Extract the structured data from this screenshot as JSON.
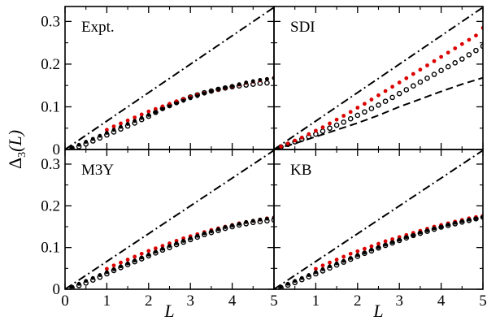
{
  "chart_data": {
    "type": "scatter",
    "layout": "2x2 panels, shared x and y axes",
    "xlabel": "L",
    "ylabel": "Δ3(L)",
    "ylabel_main": "Δ",
    "ylabel_sub": "3",
    "ylabel_tail": "(L)",
    "xlim": [
      0,
      5
    ],
    "ylim": [
      0,
      0.335
    ],
    "xticks": [
      0,
      1,
      2,
      3,
      4,
      5
    ],
    "x_tick_labels": [
      "0",
      "1",
      "2",
      "3",
      "4",
      "5"
    ],
    "yticks": [
      0,
      0.1,
      0.2,
      0.3
    ],
    "y_tick_labels": [
      "0",
      "0.1",
      "0.2",
      "0.3"
    ],
    "grid": false,
    "legend": "none",
    "colors": {
      "open_circles": "#000000",
      "red_dots": "#dd0000",
      "black_dots": "#000000",
      "dash_dot_line": "#000000",
      "dashed_line": "#000000"
    },
    "panels": [
      {
        "label": "Expt.",
        "position": "top-left",
        "series": [
          {
            "marker": "open-circle",
            "x": [
              0.167,
              0.333,
              0.5,
              0.667,
              0.833,
              1.0,
              1.167,
              1.333,
              1.5,
              1.667,
              1.833,
              2.0,
              2.167,
              2.333,
              2.5,
              2.667,
              2.833,
              3.0,
              3.167,
              3.333,
              3.5,
              3.667,
              3.833,
              4.0,
              4.167,
              4.333,
              4.5,
              4.667,
              4.833
            ],
            "y": [
              0.003,
              0.007,
              0.013,
              0.02,
              0.027,
              0.034,
              0.041,
              0.048,
              0.055,
              0.062,
              0.07,
              0.078,
              0.087,
              0.096,
              0.103,
              0.11,
              0.117,
              0.123,
              0.128,
              0.133,
              0.137,
              0.141,
              0.144,
              0.147,
              0.149,
              0.151,
              0.153,
              0.155,
              0.156
            ]
          },
          {
            "marker": "red-dot",
            "x": [
              1.0,
              1.167,
              1.333,
              1.5,
              1.667,
              1.833,
              2.0,
              2.167,
              2.333,
              2.5,
              2.667,
              2.833,
              3.0,
              3.167,
              3.333,
              3.5,
              3.667,
              3.833,
              4.0,
              4.167,
              4.333,
              4.5,
              4.667,
              4.833,
              5.0
            ],
            "y": [
              0.046,
              0.054,
              0.061,
              0.068,
              0.075,
              0.082,
              0.089,
              0.095,
              0.101,
              0.107,
              0.113,
              0.118,
              0.123,
              0.128,
              0.132,
              0.136,
              0.14,
              0.144,
              0.148,
              0.152,
              0.156,
              0.159,
              0.162,
              0.165,
              0.168
            ]
          },
          {
            "marker": "black-dot",
            "x": [
              0.0,
              0.167,
              0.333,
              0.5,
              0.667,
              0.833,
              1.0,
              1.167,
              1.333,
              1.5,
              1.667,
              1.833,
              2.0,
              2.167,
              2.333,
              2.5,
              2.667,
              2.833,
              3.0,
              3.167,
              3.333,
              3.5,
              3.667,
              3.833,
              4.0,
              4.167,
              4.333,
              4.5,
              4.667,
              4.833,
              5.0
            ],
            "y": [
              0.0,
              0.005,
              0.011,
              0.018,
              0.025,
              0.032,
              0.039,
              0.046,
              0.053,
              0.06,
              0.067,
              0.074,
              0.081,
              0.088,
              0.095,
              0.101,
              0.108,
              0.114,
              0.12,
              0.125,
              0.131,
              0.136,
              0.141,
              0.145,
              0.149,
              0.153,
              0.157,
              0.16,
              0.163,
              0.165,
              0.167
            ]
          },
          {
            "marker": "dash-dot-line",
            "x": [
              0,
              5
            ],
            "y": [
              0,
              0.333
            ]
          }
        ]
      },
      {
        "label": "SDI",
        "position": "top-right",
        "series": [
          {
            "marker": "open-circle",
            "x": [
              0.167,
              0.333,
              0.5,
              0.667,
              0.833,
              1.0,
              1.167,
              1.333,
              1.5,
              1.667,
              1.833,
              2.0,
              2.167,
              2.333,
              2.5,
              2.667,
              2.833,
              3.0,
              3.167,
              3.333,
              3.5,
              3.667,
              3.833,
              4.0,
              4.167,
              4.333,
              4.5,
              4.667,
              4.833,
              5.0
            ],
            "y": [
              0.006,
              0.012,
              0.018,
              0.024,
              0.03,
              0.036,
              0.043,
              0.05,
              0.057,
              0.064,
              0.072,
              0.08,
              0.088,
              0.096,
              0.104,
              0.113,
              0.122,
              0.131,
              0.14,
              0.149,
              0.158,
              0.167,
              0.176,
              0.185,
              0.194,
              0.203,
              0.212,
              0.222,
              0.232,
              0.242
            ]
          },
          {
            "marker": "red-dot",
            "x": [
              0.167,
              0.333,
              0.5,
              0.667,
              0.833,
              1.0,
              1.167,
              1.333,
              1.5,
              1.667,
              1.833,
              2.0,
              2.167,
              2.333,
              2.5,
              2.667,
              2.833,
              3.0,
              3.167,
              3.333,
              3.5,
              3.667,
              3.833,
              4.0,
              4.167,
              4.333,
              4.5,
              4.667,
              4.833,
              5.0
            ],
            "y": [
              0.007,
              0.014,
              0.021,
              0.028,
              0.036,
              0.044,
              0.052,
              0.061,
              0.07,
              0.079,
              0.088,
              0.098,
              0.107,
              0.117,
              0.127,
              0.137,
              0.147,
              0.157,
              0.167,
              0.177,
              0.187,
              0.197,
              0.207,
              0.217,
              0.227,
              0.237,
              0.247,
              0.257,
              0.267,
              0.285
            ]
          },
          {
            "marker": "dash-dot-line",
            "x": [
              0,
              5
            ],
            "y": [
              0,
              0.333
            ]
          },
          {
            "marker": "dashed-line",
            "x": [
              0,
              0.5,
              1.0,
              1.5,
              2.0,
              2.5,
              3.0,
              3.5,
              4.0,
              4.5,
              5.0
            ],
            "y": [
              0.0,
              0.014,
              0.03,
              0.046,
              0.062,
              0.08,
              0.1,
              0.118,
              0.136,
              0.153,
              0.168
            ]
          }
        ]
      },
      {
        "label": "M3Y",
        "position": "bottom-left",
        "series": [
          {
            "marker": "open-circle",
            "x": [
              0.167,
              0.333,
              0.5,
              0.667,
              0.833,
              1.0,
              1.167,
              1.333,
              1.5,
              1.667,
              1.833,
              2.0,
              2.167,
              2.333,
              2.5,
              2.667,
              2.833,
              3.0,
              3.167,
              3.333,
              3.5,
              3.667,
              3.833,
              4.0,
              4.167,
              4.333,
              4.5,
              4.667,
              4.833,
              5.0
            ],
            "y": [
              0.004,
              0.009,
              0.015,
              0.022,
              0.029,
              0.037,
              0.045,
              0.052,
              0.059,
              0.066,
              0.073,
              0.08,
              0.087,
              0.094,
              0.1,
              0.107,
              0.113,
              0.119,
              0.125,
              0.131,
              0.136,
              0.141,
              0.146,
              0.15,
              0.154,
              0.157,
              0.16,
              0.162,
              0.164,
              0.166
            ]
          },
          {
            "marker": "red-dot",
            "x": [
              1.0,
              1.167,
              1.333,
              1.5,
              1.667,
              1.833,
              2.0,
              2.167,
              2.333,
              2.5,
              2.667,
              2.833,
              3.0,
              3.167,
              3.333,
              3.5,
              3.667,
              3.833,
              4.0,
              4.167,
              4.333,
              4.5,
              4.667,
              4.833,
              5.0
            ],
            "y": [
              0.049,
              0.057,
              0.064,
              0.071,
              0.078,
              0.085,
              0.092,
              0.098,
              0.104,
              0.11,
              0.116,
              0.122,
              0.127,
              0.132,
              0.137,
              0.142,
              0.146,
              0.15,
              0.154,
              0.158,
              0.161,
              0.164,
              0.167,
              0.17,
              0.172
            ]
          },
          {
            "marker": "black-dot",
            "x": [
              0.0,
              0.167,
              0.333,
              0.5,
              0.667,
              0.833,
              1.0,
              1.167,
              1.333,
              1.5,
              1.667,
              1.833,
              2.0,
              2.167,
              2.333,
              2.5,
              2.667,
              2.833,
              3.0,
              3.167,
              3.333,
              3.5,
              3.667,
              3.833,
              4.0,
              4.167,
              4.333,
              4.5,
              4.667,
              4.833,
              5.0
            ],
            "y": [
              0.0,
              0.006,
              0.013,
              0.02,
              0.027,
              0.034,
              0.041,
              0.048,
              0.055,
              0.062,
              0.069,
              0.076,
              0.083,
              0.09,
              0.097,
              0.104,
              0.11,
              0.116,
              0.122,
              0.128,
              0.134,
              0.139,
              0.144,
              0.149,
              0.153,
              0.157,
              0.161,
              0.164,
              0.167,
              0.169,
              0.171
            ]
          },
          {
            "marker": "dash-dot-line",
            "x": [
              0,
              5
            ],
            "y": [
              0,
              0.333
            ]
          }
        ]
      },
      {
        "label": "KB",
        "position": "bottom-right",
        "series": [
          {
            "marker": "open-circle",
            "x": [
              0.167,
              0.333,
              0.5,
              0.667,
              0.833,
              1.0,
              1.167,
              1.333,
              1.5,
              1.667,
              1.833,
              2.0,
              2.167,
              2.333,
              2.5,
              2.667,
              2.833,
              3.0,
              3.167,
              3.333,
              3.5,
              3.667,
              3.833,
              4.0,
              4.167,
              4.333,
              4.5,
              4.667,
              4.833,
              5.0
            ],
            "y": [
              0.004,
              0.01,
              0.016,
              0.023,
              0.03,
              0.037,
              0.044,
              0.051,
              0.058,
              0.065,
              0.072,
              0.079,
              0.086,
              0.092,
              0.099,
              0.105,
              0.111,
              0.117,
              0.123,
              0.129,
              0.134,
              0.139,
              0.144,
              0.149,
              0.153,
              0.157,
              0.161,
              0.165,
              0.169,
              0.173
            ]
          },
          {
            "marker": "red-dot",
            "x": [
              1.0,
              1.167,
              1.333,
              1.5,
              1.667,
              1.833,
              2.0,
              2.167,
              2.333,
              2.5,
              2.667,
              2.833,
              3.0,
              3.167,
              3.333,
              3.5,
              3.667,
              3.833,
              4.0,
              4.167,
              4.333,
              4.5,
              4.667,
              4.833,
              5.0
            ],
            "y": [
              0.049,
              0.057,
              0.064,
              0.071,
              0.078,
              0.085,
              0.091,
              0.097,
              0.103,
              0.109,
              0.115,
              0.12,
              0.125,
              0.13,
              0.135,
              0.14,
              0.145,
              0.15,
              0.154,
              0.158,
              0.162,
              0.166,
              0.17,
              0.173,
              0.176
            ]
          },
          {
            "marker": "black-dot",
            "x": [
              0.0,
              0.167,
              0.333,
              0.5,
              0.667,
              0.833,
              1.0,
              1.167,
              1.333,
              1.5,
              1.667,
              1.833,
              2.0,
              2.167,
              2.333,
              2.5,
              2.667,
              2.833,
              3.0,
              3.167,
              3.333,
              3.5,
              3.667,
              3.833,
              4.0,
              4.167,
              4.333,
              4.5,
              4.667,
              4.833,
              5.0
            ],
            "y": [
              0.0,
              0.006,
              0.013,
              0.02,
              0.027,
              0.034,
              0.041,
              0.048,
              0.055,
              0.062,
              0.068,
              0.075,
              0.082,
              0.088,
              0.095,
              0.101,
              0.107,
              0.113,
              0.119,
              0.125,
              0.13,
              0.136,
              0.141,
              0.146,
              0.15,
              0.155,
              0.159,
              0.163,
              0.167,
              0.17,
              0.173
            ]
          },
          {
            "marker": "dash-dot-line",
            "x": [
              0,
              5
            ],
            "y": [
              0,
              0.333
            ]
          }
        ]
      }
    ]
  }
}
